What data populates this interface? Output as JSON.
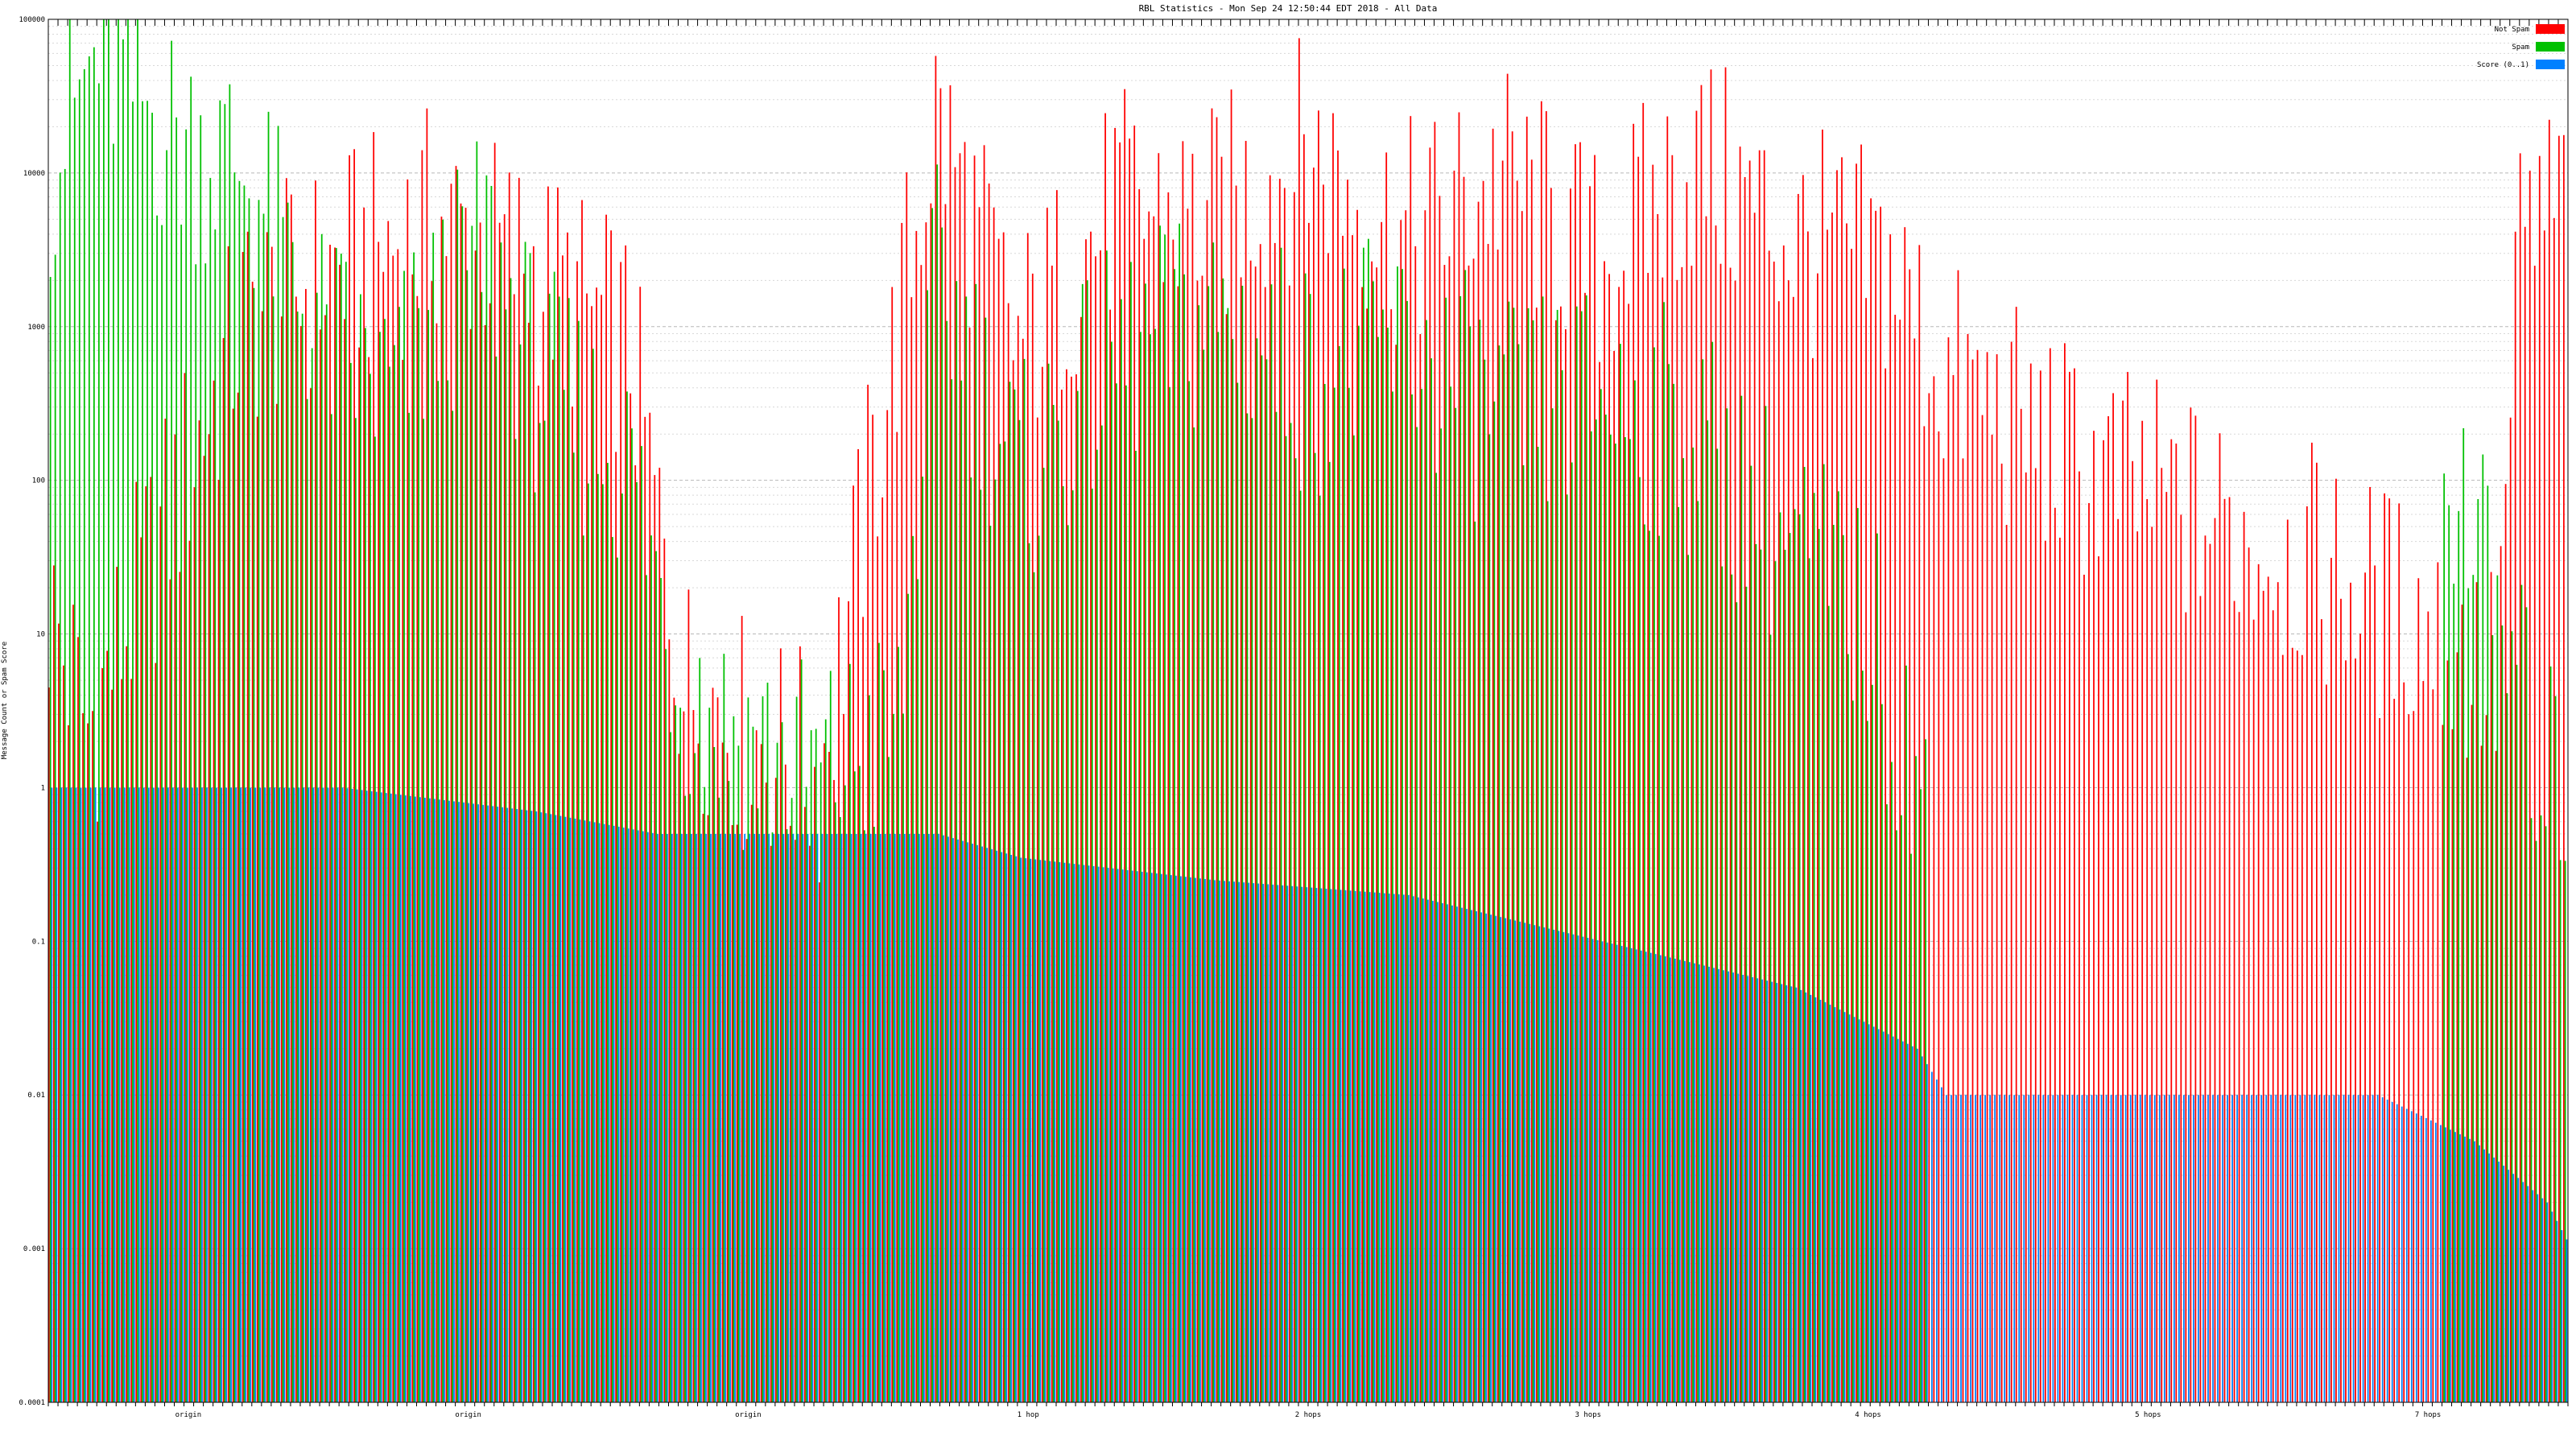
{
  "chart_data": {
    "type": "bar",
    "title": "RBL Statistics - Mon Sep 24 12:50:44 EDT 2018 - All Data",
    "ylabel": "Message Count or Spam Score",
    "xlabel": "",
    "scale": "log",
    "ylim": [
      0.0001,
      100000
    ],
    "y_ticks": [
      "0.0001",
      "0.001",
      "0.01",
      "0.1",
      "1",
      "10",
      "100",
      "1000",
      "10000",
      "100000"
    ],
    "grid": true,
    "legend_position": "top-right",
    "category_count": 520,
    "series": [
      {
        "name": "Not Spam",
        "color": "#ff0000",
        "profile": [
          [
            0,
            12
          ],
          [
            8,
            2
          ],
          [
            40,
            900
          ],
          [
            60,
            2000
          ],
          [
            80,
            4000
          ],
          [
            100,
            2000
          ],
          [
            120,
            600
          ],
          [
            131,
            4
          ],
          [
            138,
            3
          ],
          [
            143,
            2
          ],
          [
            159,
            1
          ],
          [
            183,
            20000
          ],
          [
            200,
            600
          ],
          [
            220,
            5000
          ],
          [
            240,
            4000
          ],
          [
            260,
            12000
          ],
          [
            280,
            3000
          ],
          [
            300,
            8000
          ],
          [
            320,
            2000
          ],
          [
            340,
            10000
          ],
          [
            360,
            3000
          ],
          [
            380,
            2000
          ],
          [
            391,
            400
          ],
          [
            420,
            100
          ],
          [
            460,
            30
          ],
          [
            490,
            10
          ],
          [
            505,
            4
          ],
          [
            510,
            3000
          ],
          [
            520,
            6000
          ]
        ]
      },
      {
        "name": "Spam",
        "color": "#00c000",
        "profile": [
          [
            0,
            10000
          ],
          [
            10,
            50000
          ],
          [
            25,
            15000
          ],
          [
            40,
            9000
          ],
          [
            55,
            800
          ],
          [
            70,
            300
          ],
          [
            90,
            3000
          ],
          [
            100,
            400
          ],
          [
            120,
            100
          ],
          [
            130,
            4
          ],
          [
            140,
            2
          ],
          [
            159,
            1
          ],
          [
            175,
            2
          ],
          [
            183,
            2000
          ],
          [
            200,
            80
          ],
          [
            220,
            500
          ],
          [
            240,
            1000
          ],
          [
            260,
            400
          ],
          [
            280,
            600
          ],
          [
            300,
            200
          ],
          [
            320,
            300
          ],
          [
            340,
            150
          ],
          [
            360,
            30
          ],
          [
            375,
            10
          ],
          [
            385,
            1
          ],
          [
            391,
            0
          ],
          [
            490,
            0
          ],
          [
            498,
            80
          ],
          [
            505,
            10
          ],
          [
            515,
            1
          ]
        ]
      },
      {
        "name": "Score (0..1)",
        "color": "#0080ff",
        "profile": [
          [
            0,
            1
          ],
          [
            60,
            1
          ],
          [
            100,
            0.7
          ],
          [
            125,
            0.5
          ],
          [
            183,
            0.5
          ],
          [
            200,
            0.35
          ],
          [
            240,
            0.25
          ],
          [
            280,
            0.2
          ],
          [
            320,
            0.1
          ],
          [
            360,
            0.05
          ],
          [
            385,
            0.02
          ],
          [
            391,
            0.01
          ],
          [
            480,
            0.01
          ],
          [
            500,
            0.005
          ],
          [
            515,
            0.002
          ],
          [
            520,
            0.001
          ]
        ]
      }
    ],
    "tick_label_sample": [
      "origin",
      "origin",
      "origin",
      "1 hop",
      "2 hops",
      "3 hops",
      "4 hops",
      "5 hops",
      "7 hops"
    ]
  }
}
